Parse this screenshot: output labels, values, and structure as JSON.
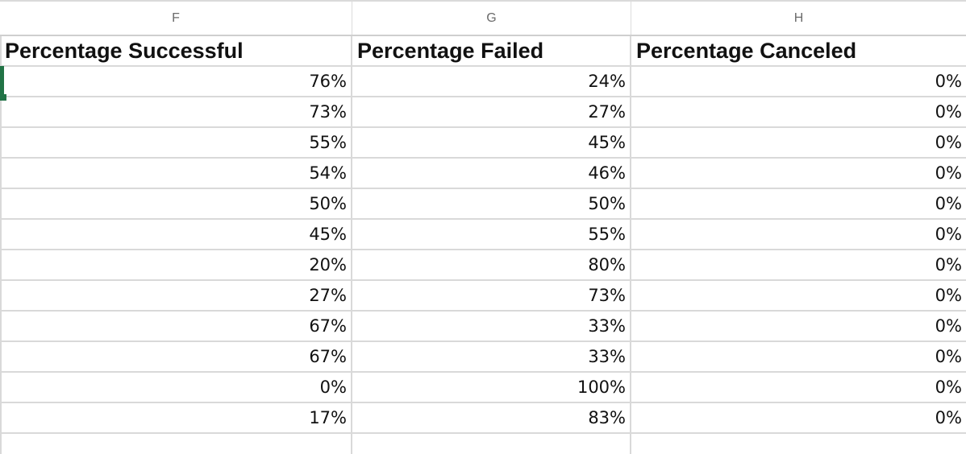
{
  "columns": [
    {
      "letter": "F",
      "header": "Percentage Successful"
    },
    {
      "letter": "G",
      "header": "Percentage Failed"
    },
    {
      "letter": "H",
      "header": "Percentage Canceled"
    }
  ],
  "rows": [
    [
      "76%",
      "24%",
      "0%"
    ],
    [
      "73%",
      "27%",
      "0%"
    ],
    [
      "55%",
      "45%",
      "0%"
    ],
    [
      "54%",
      "46%",
      "0%"
    ],
    [
      "50%",
      "50%",
      "0%"
    ],
    [
      "45%",
      "55%",
      "0%"
    ],
    [
      "20%",
      "80%",
      "0%"
    ],
    [
      "27%",
      "73%",
      "0%"
    ],
    [
      "67%",
      "33%",
      "0%"
    ],
    [
      "67%",
      "33%",
      "0%"
    ],
    [
      "0%",
      "100%",
      "0%"
    ],
    [
      "17%",
      "83%",
      "0%"
    ],
    [
      "",
      "",
      ""
    ]
  ],
  "colors": {
    "selection": "#217346",
    "gridline": "#d9d9d9",
    "header_text": "#6b6b6b"
  }
}
